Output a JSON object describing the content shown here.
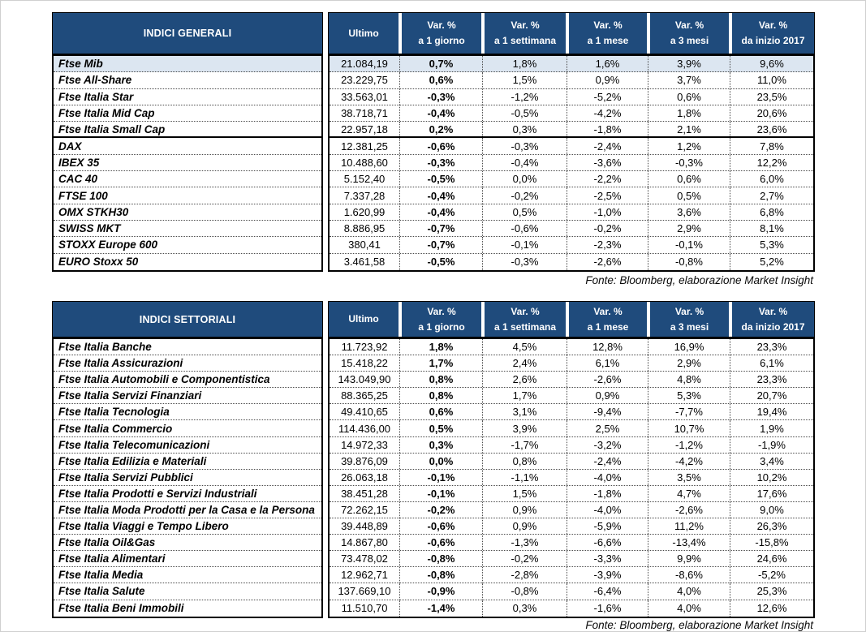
{
  "colors": {
    "header_bg": "#1f4b7c",
    "highlight_row_bg": "#dce6f1",
    "header_text": "#ffffff"
  },
  "source_note": "Fonte: Bloomberg, elaborazione Market Insight",
  "tables": [
    {
      "title": "INDICI GENERALI",
      "columns": [
        [
          "Ultimo"
        ],
        [
          "Var. %",
          "a 1 giorno"
        ],
        [
          "Var. %",
          "a 1 settimana"
        ],
        [
          "Var. %",
          "a 1 mese"
        ],
        [
          "Var. %",
          "a 3 mesi"
        ],
        [
          "Var. %",
          "da inizio 2017"
        ]
      ],
      "rows": [
        {
          "name": "Ftse Mib",
          "values": [
            "21.084,19",
            "0,7%",
            "1,8%",
            "1,6%",
            "3,9%",
            "9,6%"
          ],
          "highlight": true
        },
        {
          "name": "Ftse All-Share",
          "values": [
            "23.229,75",
            "0,6%",
            "1,5%",
            "0,9%",
            "3,7%",
            "11,0%"
          ]
        },
        {
          "name": "Ftse Italia Star",
          "values": [
            "33.563,01",
            "-0,3%",
            "-1,2%",
            "-5,2%",
            "0,6%",
            "23,5%"
          ]
        },
        {
          "name": "Ftse Italia Mid Cap",
          "values": [
            "38.718,71",
            "-0,4%",
            "-0,5%",
            "-4,2%",
            "1,8%",
            "20,6%"
          ]
        },
        {
          "name": "Ftse Italia Small Cap",
          "values": [
            "22.957,18",
            "0,2%",
            "0,3%",
            "-1,8%",
            "2,1%",
            "23,6%"
          ],
          "group_end": true
        },
        {
          "name": "DAX",
          "values": [
            "12.381,25",
            "-0,6%",
            "-0,3%",
            "-2,4%",
            "1,2%",
            "7,8%"
          ]
        },
        {
          "name": "IBEX 35",
          "values": [
            "10.488,60",
            "-0,3%",
            "-0,4%",
            "-3,6%",
            "-0,3%",
            "12,2%"
          ]
        },
        {
          "name": "CAC 40",
          "values": [
            "5.152,40",
            "-0,5%",
            "0,0%",
            "-2,2%",
            "0,6%",
            "6,0%"
          ]
        },
        {
          "name": "FTSE 100",
          "values": [
            "7.337,28",
            "-0,4%",
            "-0,2%",
            "-2,5%",
            "0,5%",
            "2,7%"
          ]
        },
        {
          "name": "OMX STKH30",
          "values": [
            "1.620,99",
            "-0,4%",
            "0,5%",
            "-1,0%",
            "3,6%",
            "6,8%"
          ]
        },
        {
          "name": "SWISS MKT",
          "values": [
            "8.886,95",
            "-0,7%",
            "-0,6%",
            "-0,2%",
            "2,9%",
            "8,1%"
          ]
        },
        {
          "name": "STOXX Europe 600",
          "values": [
            "380,41",
            "-0,7%",
            "-0,1%",
            "-2,3%",
            "-0,1%",
            "5,3%"
          ]
        },
        {
          "name": "EURO Stoxx 50",
          "values": [
            "3.461,58",
            "-0,5%",
            "-0,3%",
            "-2,6%",
            "-0,8%",
            "5,2%"
          ]
        }
      ]
    },
    {
      "title": "INDICI SETTORIALI",
      "columns": [
        [
          "Ultimo"
        ],
        [
          "Var. %",
          "a 1 giorno"
        ],
        [
          "Var. %",
          "a 1 settimana"
        ],
        [
          "Var. %",
          "a 1 mese"
        ],
        [
          "Var. %",
          "a 3 mesi"
        ],
        [
          "Var. %",
          "da inizio 2017"
        ]
      ],
      "rows": [
        {
          "name": "Ftse Italia Banche",
          "values": [
            "11.723,92",
            "1,8%",
            "4,5%",
            "12,8%",
            "16,9%",
            "23,3%"
          ]
        },
        {
          "name": "Ftse Italia Assicurazioni",
          "values": [
            "15.418,22",
            "1,7%",
            "2,4%",
            "6,1%",
            "2,9%",
            "6,1%"
          ]
        },
        {
          "name": "Ftse Italia Automobili e Componentistica",
          "values": [
            "143.049,90",
            "0,8%",
            "2,6%",
            "-2,6%",
            "4,8%",
            "23,3%"
          ]
        },
        {
          "name": "Ftse Italia Servizi Finanziari",
          "values": [
            "88.365,25",
            "0,8%",
            "1,7%",
            "0,9%",
            "5,3%",
            "20,7%"
          ]
        },
        {
          "name": "Ftse Italia Tecnologia",
          "values": [
            "49.410,65",
            "0,6%",
            "3,1%",
            "-9,4%",
            "-7,7%",
            "19,4%"
          ]
        },
        {
          "name": "Ftse Italia Commercio",
          "values": [
            "114.436,00",
            "0,5%",
            "3,9%",
            "2,5%",
            "10,7%",
            "1,9%"
          ]
        },
        {
          "name": "Ftse Italia Telecomunicazioni",
          "values": [
            "14.972,33",
            "0,3%",
            "-1,7%",
            "-3,2%",
            "-1,2%",
            "-1,9%"
          ]
        },
        {
          "name": "Ftse Italia Edilizia e Materiali",
          "values": [
            "39.876,09",
            "0,0%",
            "0,8%",
            "-2,4%",
            "-4,2%",
            "3,4%"
          ]
        },
        {
          "name": "Ftse Italia Servizi Pubblici",
          "values": [
            "26.063,18",
            "-0,1%",
            "-1,1%",
            "-4,0%",
            "3,5%",
            "10,2%"
          ]
        },
        {
          "name": "Ftse Italia Prodotti e Servizi Industriali",
          "values": [
            "38.451,28",
            "-0,1%",
            "1,5%",
            "-1,8%",
            "4,7%",
            "17,6%"
          ]
        },
        {
          "name": "Ftse Italia Moda Prodotti per la Casa e la Persona",
          "values": [
            "72.262,15",
            "-0,2%",
            "0,9%",
            "-4,0%",
            "-2,6%",
            "9,0%"
          ]
        },
        {
          "name": "Ftse Italia Viaggi e Tempo Libero",
          "values": [
            "39.448,89",
            "-0,6%",
            "0,9%",
            "-5,9%",
            "11,2%",
            "26,3%"
          ]
        },
        {
          "name": "Ftse Italia Oil&Gas",
          "values": [
            "14.867,80",
            "-0,6%",
            "-1,3%",
            "-6,6%",
            "-13,4%",
            "-15,8%"
          ]
        },
        {
          "name": "Ftse Italia Alimentari",
          "values": [
            "73.478,02",
            "-0,8%",
            "-0,2%",
            "-3,3%",
            "9,9%",
            "24,6%"
          ]
        },
        {
          "name": "Ftse Italia Media",
          "values": [
            "12.962,71",
            "-0,8%",
            "-2,8%",
            "-3,9%",
            "-8,6%",
            "-5,2%"
          ]
        },
        {
          "name": "Ftse Italia Salute",
          "values": [
            "137.669,10",
            "-0,9%",
            "-0,8%",
            "-6,4%",
            "4,0%",
            "25,3%"
          ]
        },
        {
          "name": "Ftse Italia Beni Immobili",
          "values": [
            "11.510,70",
            "-1,4%",
            "0,3%",
            "-1,6%",
            "4,0%",
            "12,6%"
          ]
        }
      ]
    }
  ]
}
